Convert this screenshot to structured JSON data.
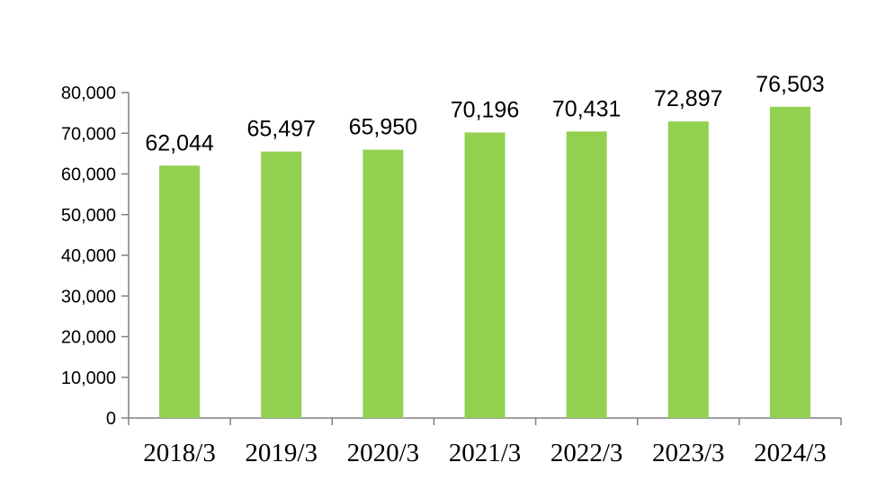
{
  "chart_data": {
    "type": "bar",
    "categories": [
      "2018/3",
      "2019/3",
      "2020/3",
      "2021/3",
      "2022/3",
      "2023/3",
      "2024/3"
    ],
    "values": [
      62044,
      65497,
      65950,
      70196,
      70431,
      72897,
      76503
    ],
    "data_labels": [
      "62,044",
      "65,497",
      "65,950",
      "70,196",
      "70,431",
      "72,897",
      "76,503"
    ],
    "ylim": [
      0,
      80000
    ],
    "yticks": [
      0,
      10000,
      20000,
      30000,
      40000,
      50000,
      60000,
      70000,
      80000
    ],
    "ytick_labels": [
      "0",
      "10,000",
      "20,000",
      "30,000",
      "40,000",
      "50,000",
      "60,000",
      "70,000",
      "80,000"
    ],
    "title": "",
    "xlabel": "",
    "ylabel": "",
    "grid": false,
    "legend": "none",
    "bar_color": "#92D050"
  }
}
